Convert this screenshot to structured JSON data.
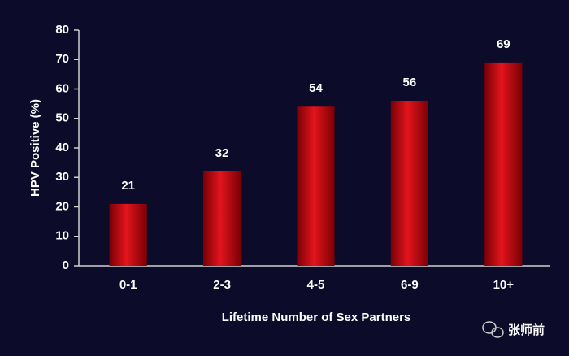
{
  "chart_data": {
    "type": "bar",
    "categories": [
      "0-1",
      "2-3",
      "4-5",
      "6-9",
      "10+"
    ],
    "values": [
      21,
      32,
      54,
      56,
      69
    ],
    "color": "#e3141c",
    "ylim": [
      0,
      80
    ],
    "yticks": [
      0,
      10,
      20,
      30,
      40,
      50,
      60,
      70,
      80
    ],
    "ylabel": "HPV Positive (%)",
    "xlabel": "Lifetime Number of Sex Partners"
  },
  "watermark": "张师前"
}
